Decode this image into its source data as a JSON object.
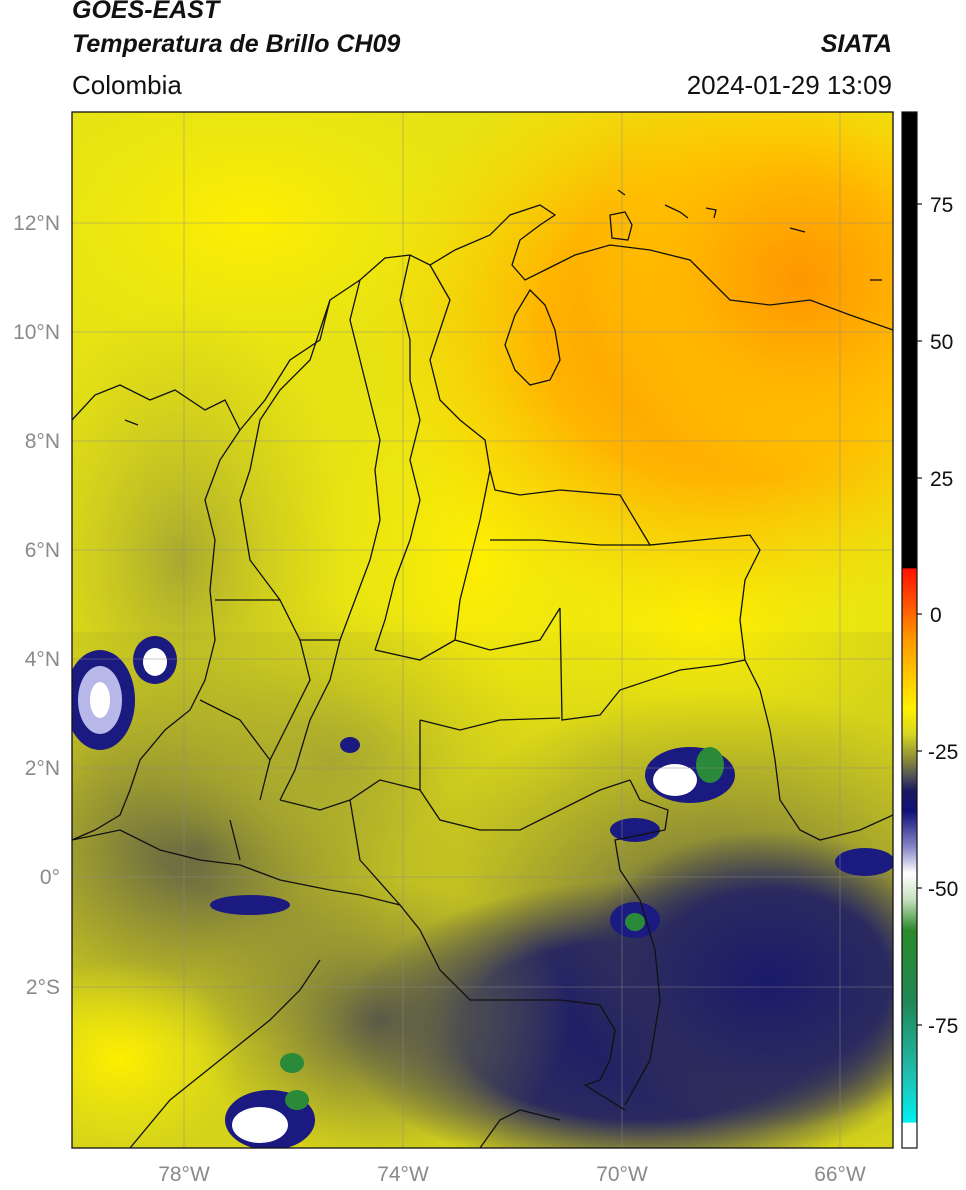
{
  "header": {
    "title_line1": "GOES-EAST",
    "title_line2": "Temperatura de Brillo CH09",
    "organization": "SIATA",
    "region": "Colombia",
    "datetime": "2024-01-29 13:09"
  },
  "map": {
    "lon_ticks": [
      "78°W",
      "74°W",
      "70°W",
      "66°W"
    ],
    "lat_ticks": [
      "12°N",
      "10°N",
      "8°N",
      "6°N",
      "4°N",
      "2°N",
      "0°",
      "2°S"
    ],
    "grid": true
  },
  "colorbar": {
    "ticks": [
      "75",
      "50",
      "25",
      "0",
      "-25",
      "-50",
      "-75"
    ],
    "colors": {
      "top": "#000000",
      "warm": "#ff2000",
      "orange": "#ff9a00",
      "yellow": "#ffee00",
      "olive": "#8a8a40",
      "gray": "#444455",
      "navy": "#101070",
      "white": "#ffffff",
      "green": "#2a8a3a",
      "teal": "#20c0b0",
      "cyan": "#00e8f0"
    }
  }
}
